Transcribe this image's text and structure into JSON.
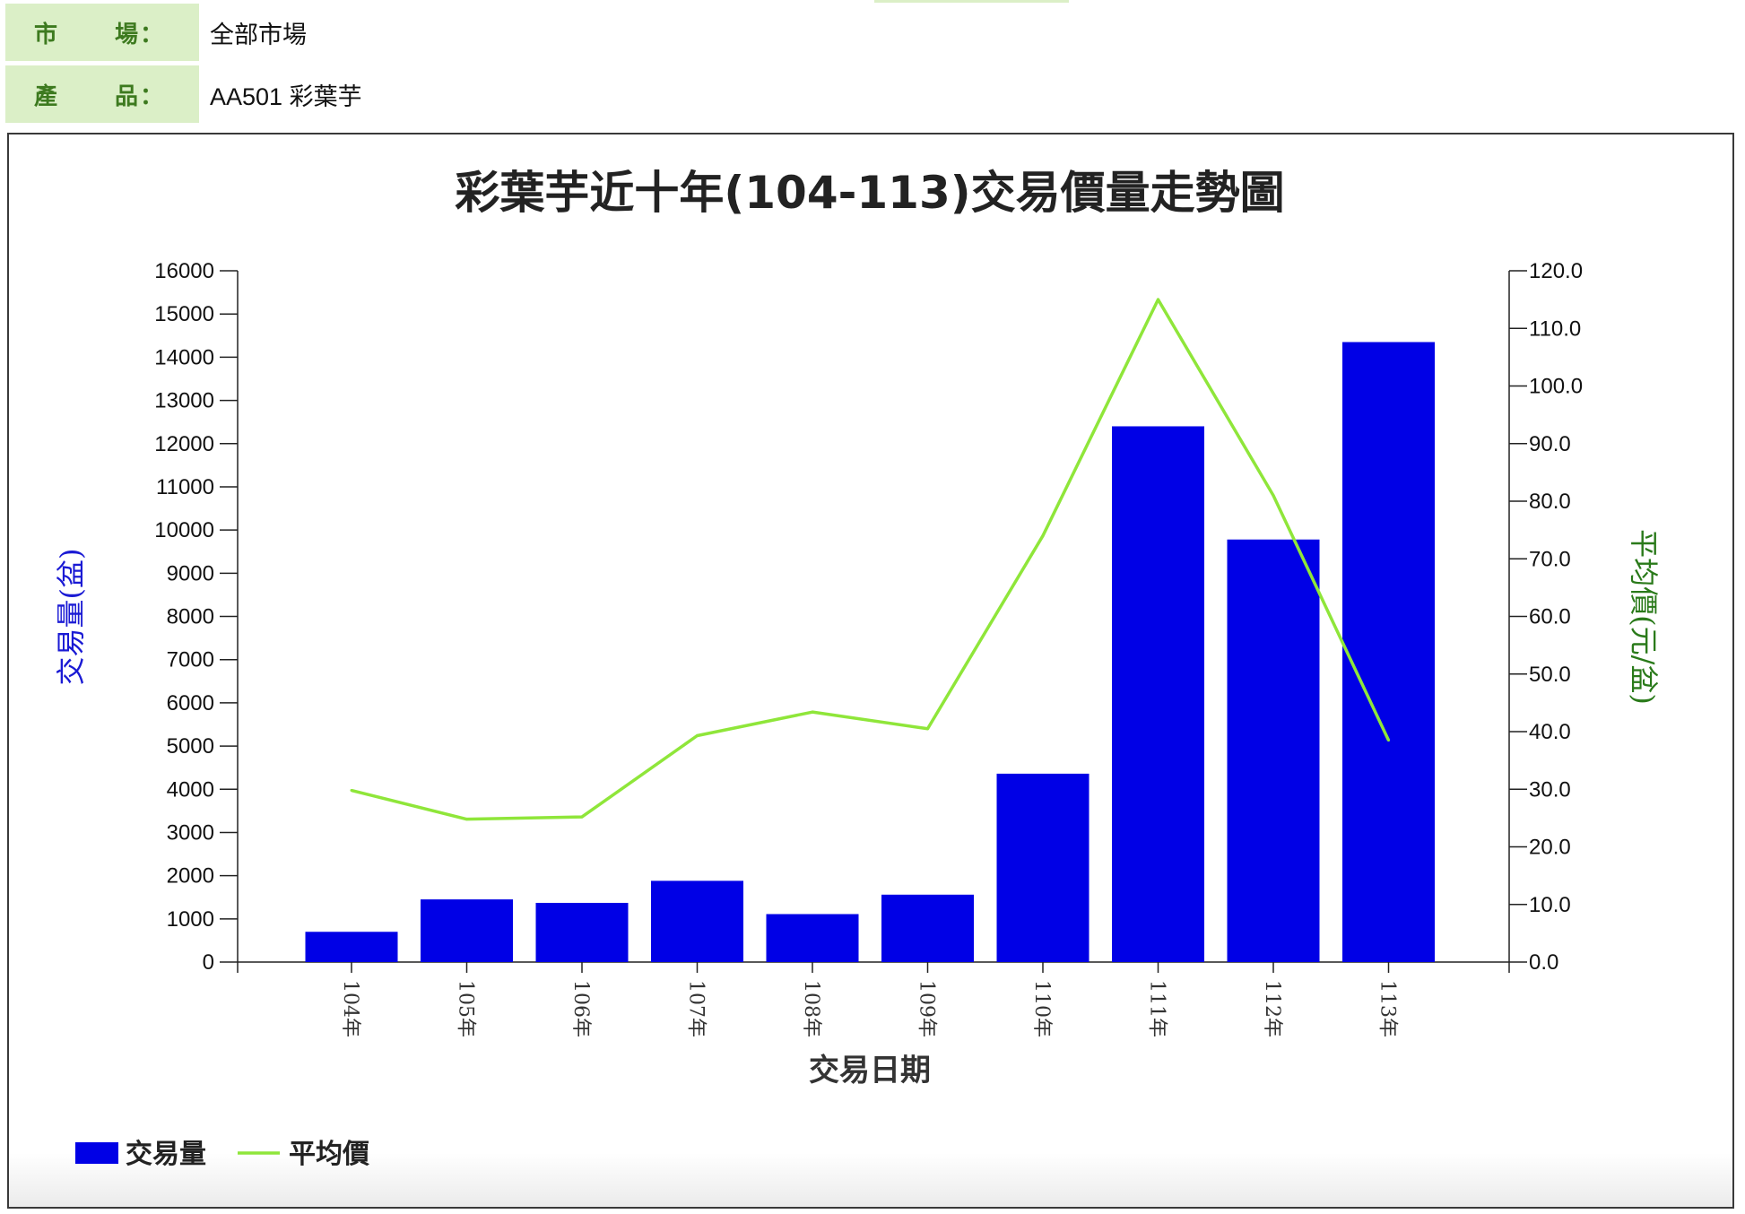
{
  "filters": {
    "market_label_a": "市",
    "market_label_b": "場：",
    "market_value": "全部市場",
    "product_label_a": "產",
    "product_label_b": "品：",
    "product_value": "AA501 彩葉芋"
  },
  "colors": {
    "bar": "#0000e6",
    "line": "#8fe63a",
    "left_axis_label": "#1a1ad4",
    "right_axis_label": "#2a7a1a",
    "label_bg": "#dbefc7",
    "label_text": "#3d7a1f"
  },
  "chart_data": {
    "type": "bar",
    "title": "彩葉芋近十年(104-113)交易價量走勢圖",
    "xlabel": "交易日期",
    "ylabel": "交易量(盆)",
    "y2label": "平均價(元/盆)",
    "categories": [
      "104年",
      "105年",
      "106年",
      "107年",
      "108年",
      "109年",
      "110年",
      "111年",
      "112年",
      "113年"
    ],
    "series": [
      {
        "name": "交易量",
        "type": "bar",
        "axis": "left",
        "values": [
          700,
          1450,
          1370,
          1880,
          1110,
          1560,
          4360,
          12400,
          9780,
          14350
        ]
      },
      {
        "name": "平均價",
        "type": "line",
        "axis": "right",
        "values": [
          29.8,
          24.8,
          25.2,
          39.3,
          43.4,
          40.5,
          74.0,
          115.0,
          81.0,
          38.5
        ]
      }
    ],
    "ylim": [
      0,
      16000
    ],
    "yticks": [
      "0",
      "1000",
      "2000",
      "3000",
      "4000",
      "5000",
      "6000",
      "7000",
      "8000",
      "9000",
      "10000",
      "11000",
      "12000",
      "13000",
      "14000",
      "15000",
      "16000"
    ],
    "y2lim": [
      0,
      120
    ],
    "y2ticks": [
      "0.0",
      "10.0",
      "20.0",
      "30.0",
      "40.0",
      "50.0",
      "60.0",
      "70.0",
      "80.0",
      "90.0",
      "100.0",
      "110.0",
      "120.0"
    ],
    "legend_position": "bottom-left",
    "grid": false
  }
}
